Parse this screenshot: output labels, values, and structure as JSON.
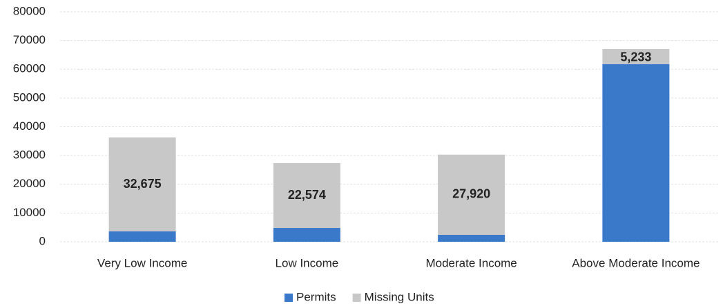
{
  "chart_data": {
    "type": "stacked_bar",
    "categories": [
      "Very Low Income",
      "Low Income",
      "Moderate Income",
      "Above Moderate Income"
    ],
    "series": [
      {
        "name": "Permits",
        "color": "#3a78c9",
        "values": [
          3600,
          4800,
          2400,
          61800
        ]
      },
      {
        "name": "Missing Units",
        "color": "#c8c8c8",
        "values": [
          32675,
          22574,
          27920,
          5233
        ],
        "value_labels": [
          "32,675",
          "22,574",
          "27,920",
          "5,233"
        ]
      }
    ],
    "ylim": [
      0,
      80000
    ],
    "yticks": [
      0,
      10000,
      20000,
      30000,
      40000,
      50000,
      60000,
      70000,
      80000
    ],
    "grid": true,
    "legend": "bottom"
  }
}
